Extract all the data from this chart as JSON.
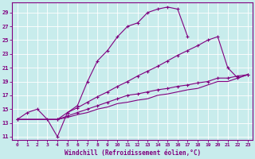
{
  "xlabel": "Windchill (Refroidissement éolien,°C)",
  "xlim": [
    -0.5,
    23.5
  ],
  "ylim": [
    10.5,
    30.5
  ],
  "xticks": [
    0,
    1,
    2,
    3,
    4,
    5,
    6,
    7,
    8,
    9,
    10,
    11,
    12,
    13,
    14,
    15,
    16,
    17,
    18,
    19,
    20,
    21,
    22,
    23
  ],
  "yticks": [
    11,
    13,
    15,
    17,
    19,
    21,
    23,
    25,
    27,
    29
  ],
  "bg_color": "#c8ecec",
  "line_color": "#800080",
  "grid_color": "#ffffff",
  "lines": [
    {
      "x": [
        0,
        1,
        2,
        3,
        4,
        5,
        6,
        7,
        8,
        9,
        10,
        11,
        12,
        13,
        14,
        15,
        16,
        17
      ],
      "y": [
        13.5,
        14.5,
        15.0,
        13.5,
        11.0,
        14.5,
        15.5,
        19.0,
        22.0,
        23.5,
        25.5,
        27.0,
        27.5,
        29.0,
        29.5,
        29.8,
        29.5,
        25.5
      ],
      "marker": "+"
    },
    {
      "x": [
        0,
        4,
        5,
        6,
        7,
        8,
        9,
        10,
        11,
        12,
        13,
        14,
        15,
        16,
        17,
        18,
        19,
        20,
        21,
        22,
        23
      ],
      "y": [
        13.5,
        13.5,
        14.5,
        15.2,
        16.0,
        16.8,
        17.5,
        18.3,
        19.0,
        19.8,
        20.5,
        21.2,
        22.0,
        22.8,
        23.5,
        24.2,
        25.0,
        25.5,
        21.0,
        19.5,
        20.0
      ],
      "marker": "+"
    },
    {
      "x": [
        0,
        4,
        5,
        6,
        7,
        8,
        9,
        10,
        11,
        12,
        13,
        14,
        15,
        16,
        17,
        18,
        19,
        20,
        21,
        22,
        23
      ],
      "y": [
        13.5,
        13.5,
        14.0,
        14.5,
        15.0,
        15.5,
        16.0,
        16.5,
        17.0,
        17.2,
        17.5,
        17.8,
        18.0,
        18.3,
        18.5,
        18.8,
        19.0,
        19.5,
        19.5,
        19.8,
        20.0
      ],
      "marker": "+"
    },
    {
      "x": [
        0,
        4,
        5,
        6,
        7,
        8,
        9,
        10,
        11,
        12,
        13,
        14,
        15,
        16,
        17,
        18,
        19,
        20,
        21,
        22,
        23
      ],
      "y": [
        13.5,
        13.5,
        13.8,
        14.2,
        14.5,
        15.0,
        15.3,
        15.8,
        16.0,
        16.3,
        16.5,
        17.0,
        17.2,
        17.5,
        17.8,
        18.0,
        18.5,
        19.0,
        19.0,
        19.5,
        20.0
      ],
      "marker": null
    }
  ]
}
